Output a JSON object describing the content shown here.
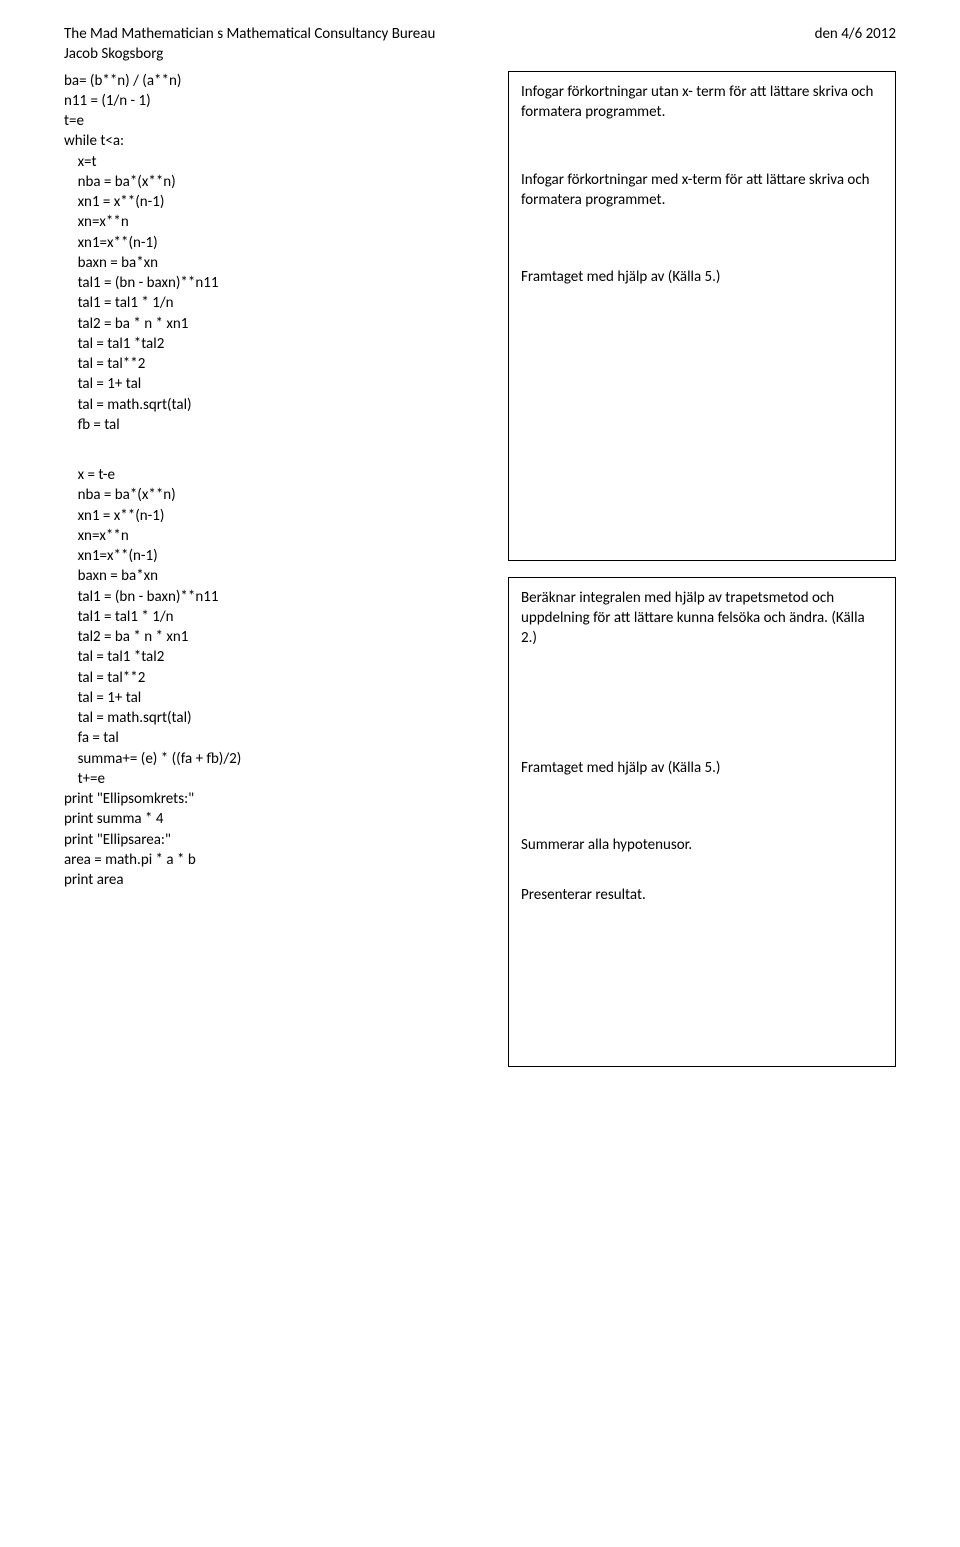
{
  "header": {
    "title": "The Mad Mathematician s Mathematical Consultancy Bureau",
    "author": "Jacob Skogsborg",
    "date": "den 4/6 2012"
  },
  "code": {
    "block1": [
      "ba= (b**n) / (a**n)",
      "n11 = (1/n - 1)",
      "t=e",
      "while t<a:",
      "    x=t",
      "    nba = ba*(x**n)",
      "    xn1 = x**(n-1)",
      "    xn=x**n",
      "    xn1=x**(n-1)",
      "    baxn = ba*xn",
      "    tal1 = (bn - baxn)**n11",
      "    tal1 = tal1 * 1/n",
      "    tal2 = ba * n * xn1",
      "    tal = tal1 *tal2",
      "    tal = tal**2",
      "    tal = 1+ tal",
      "    tal = math.sqrt(tal)",
      "    fb = tal"
    ],
    "block2": [
      "    x = t-e",
      "    nba = ba*(x**n)",
      "    xn1 = x**(n-1)",
      "    xn=x**n",
      "    xn1=x**(n-1)",
      "    baxn = ba*xn",
      "    tal1 = (bn - baxn)**n11",
      "    tal1 = tal1 * 1/n",
      "    tal2 = ba * n * xn1",
      "    tal = tal1 *tal2",
      "    tal = tal**2",
      "    tal = 1+ tal",
      "    tal = math.sqrt(tal)",
      "    fa = tal",
      "    summa+= (e) * ((fa + fb)/2)",
      "    t+=e",
      "print \"Ellipsomkrets:\"",
      "print summa * 4",
      "print \"Ellipsarea:\"",
      "area = math.pi * a * b",
      "print area"
    ]
  },
  "notes": {
    "box1": [
      "Infogar förkortningar utan x- term för att lättare skriva och formatera programmet.",
      "Infogar förkortningar med x-term för att lättare skriva och formatera programmet.",
      "Framtaget med hjälp av (Källa 5.)"
    ],
    "box2": [
      "Beräknar integralen med hjälp av trapetsmetod och uppdelning för att lättare kunna felsöka och ändra. (Källa 2.)",
      "Framtaget med hjälp av (Källa 5.)",
      "Summerar alla hypotenusor.",
      "Presenterar resultat."
    ]
  }
}
